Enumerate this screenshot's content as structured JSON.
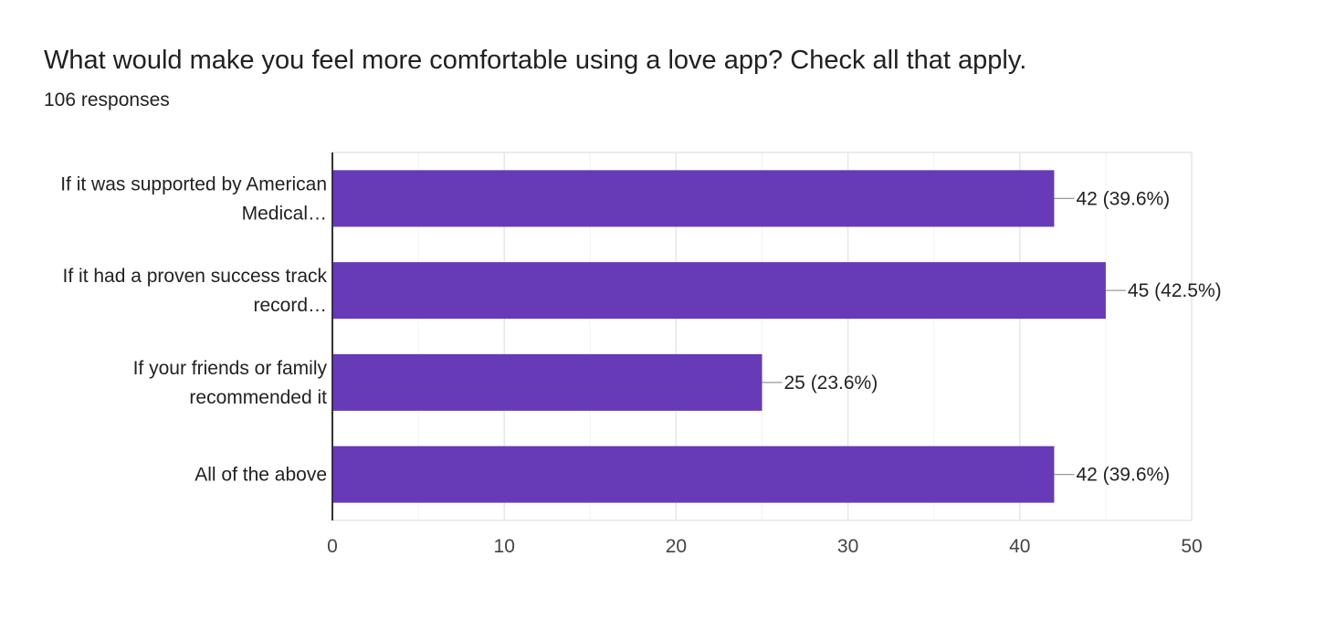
{
  "question": {
    "title": "What would make you feel more comfortable using a love app? Check all that apply.",
    "responses_label": "106 responses"
  },
  "colors": {
    "bar": "#673ab7",
    "grid_major": "#e6e6e6",
    "grid_minor": "#f3f3f3",
    "axis": "#333333",
    "leader": "#999999",
    "text": "#222222",
    "tick_text": "#444444"
  },
  "chart_data": {
    "type": "bar",
    "orientation": "horizontal",
    "categories": [
      [
        "If it was supported by American",
        "Medical…"
      ],
      [
        "If it had a proven success track",
        "record…"
      ],
      [
        "If your friends or family",
        "recommended it"
      ],
      [
        "All of the above"
      ]
    ],
    "values": [
      42,
      45,
      25,
      42
    ],
    "data_labels": [
      "42 (39.6%)",
      "45 (42.5%)",
      "25 (23.6%)",
      "42 (39.6%)"
    ],
    "xlim": [
      0,
      50
    ],
    "xticks": [
      0,
      10,
      20,
      30,
      40,
      50
    ],
    "xtick_labels": [
      "0",
      "10",
      "20",
      "30",
      "40",
      "50"
    ],
    "grid": true,
    "legend": "none"
  }
}
